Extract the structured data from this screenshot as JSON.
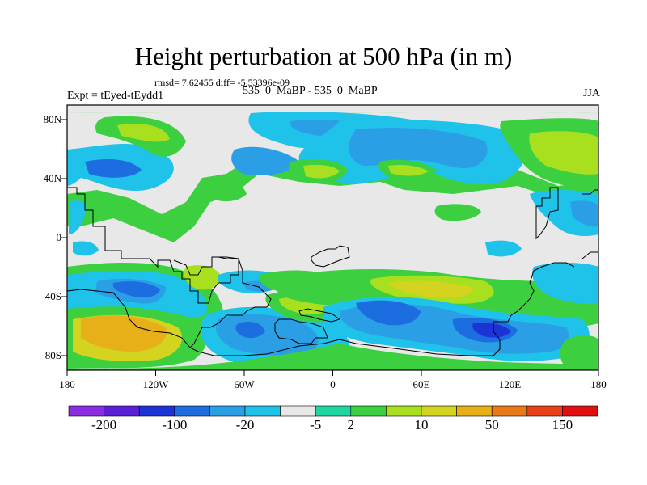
{
  "title": "Height perturbation at 500 hPa (in m)",
  "stats": "rmsd= 7.62455 diff= -5.53396e-09",
  "center_label": "535_0_MaBP - 535_0_MaBP",
  "experiment": "Expt = tEyed-tEydd1",
  "season": "JJA",
  "axes": {
    "x_ticks": [
      "180",
      "120W",
      "60W",
      "0",
      "60E",
      "120E",
      "180"
    ],
    "y_ticks": [
      "80N",
      "40N",
      "0",
      "40S",
      "80S"
    ]
  },
  "colorbar": {
    "colors": [
      "#8a2ce0",
      "#5a1fd6",
      "#1d33d6",
      "#1c6ee0",
      "#2a9fe6",
      "#1fc2e8",
      "#e8e8e8",
      "#20d6a0",
      "#3cd040",
      "#a8e020",
      "#d4d420",
      "#e8b018",
      "#e87818",
      "#e84018",
      "#e01010"
    ],
    "labels": [
      "-200",
      "-100",
      "-20",
      "-5",
      "2",
      "10",
      "50",
      "150"
    ]
  },
  "chart_data": {
    "type": "heatmap",
    "title": "Height perturbation at 500 hPa (in m)",
    "xlabel": "",
    "ylabel": "",
    "xlim": [
      -180,
      180
    ],
    "ylim": [
      -90,
      90
    ],
    "x_ticks": [
      -180,
      -120,
      -60,
      0,
      60,
      120,
      180
    ],
    "y_ticks": [
      80,
      40,
      0,
      -40,
      -80
    ],
    "levels": [
      -200,
      -100,
      -20,
      -5,
      2,
      10,
      50,
      150
    ],
    "rmsd": 7.62455,
    "diff": -5.53396e-09
  }
}
